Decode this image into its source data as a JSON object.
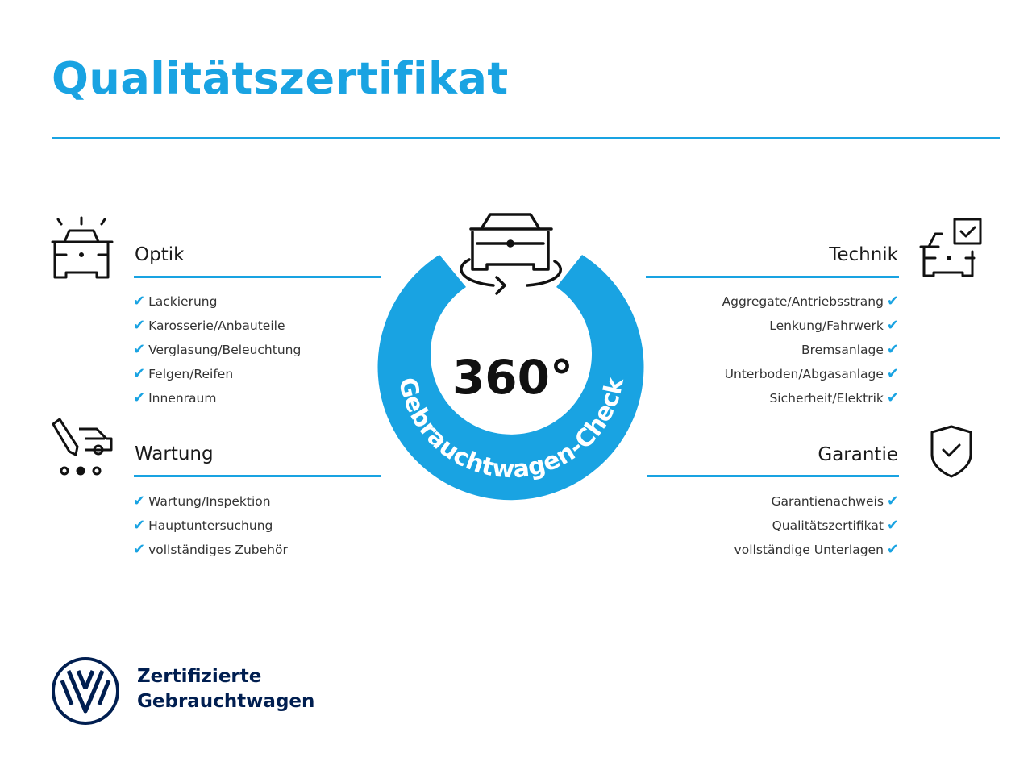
{
  "title": "Qualitätszertifikat",
  "colors": {
    "accent": "#19a3e2",
    "brand": "#001e50",
    "text": "#1a1a1a"
  },
  "badge": {
    "value": "360°",
    "arc_text": "Gebrauchtwagen-Check",
    "icon": "car-rotate-icon"
  },
  "sections": {
    "optik": {
      "title": "Optik",
      "icon": "car-lights-icon",
      "items": [
        "Lackierung",
        "Karosserie/Anbauteile",
        "Verglasung/Beleuchtung",
        "Felgen/Reifen",
        "Innenraum"
      ]
    },
    "wartung": {
      "title": "Wartung",
      "icon": "pen-car-icon",
      "items": [
        "Wartung/Inspektion",
        "Hauptuntersuchung",
        "vollständiges Zubehör"
      ]
    },
    "technik": {
      "title": "Technik",
      "icon": "car-checkbox-icon",
      "items": [
        "Aggregate/Antriebsstrang",
        "Lenkung/Fahrwerk",
        "Bremsanlage",
        "Unterboden/Abgasanlage",
        "Sicherheit/Elektrik"
      ]
    },
    "garantie": {
      "title": "Garantie",
      "icon": "shield-check-icon",
      "items": [
        "Garantienachweis",
        "Qualitätszertifikat",
        "vollständige Unterlagen"
      ]
    }
  },
  "check_glyph": "✔",
  "footer": {
    "logo": "VW",
    "line1": "Zertifizierte",
    "line2": "Gebrauchtwagen"
  }
}
